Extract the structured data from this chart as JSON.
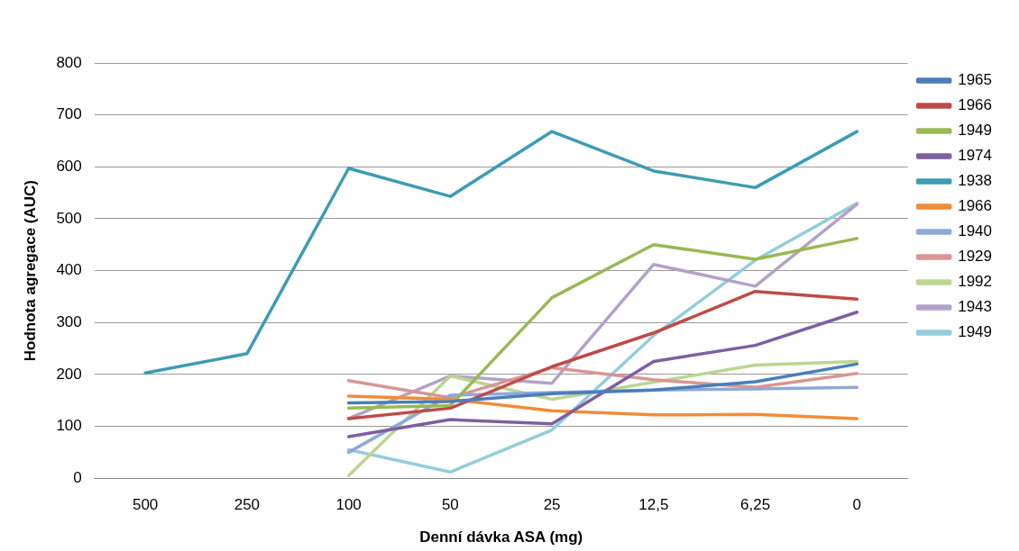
{
  "chart_data": {
    "type": "line",
    "xlabel": "Denní dávka ASA (mg)",
    "ylabel": "Hodnota agregace (AUC)",
    "categories": [
      "500",
      "250",
      "100",
      "50",
      "25",
      "12,5",
      "6,25",
      "0"
    ],
    "ylim": [
      0,
      800
    ],
    "yticks": [
      0,
      100,
      200,
      300,
      400,
      500,
      600,
      700,
      800
    ],
    "grid": "y",
    "legend": "right",
    "marker": "none",
    "series": [
      {
        "name": "1965",
        "color": "#4a7ebb",
        "values": [
          null,
          null,
          145,
          148,
          163,
          170,
          186,
          220
        ]
      },
      {
        "name": "1966",
        "color": "#be4b48",
        "values": [
          null,
          null,
          115,
          135,
          215,
          280,
          360,
          345
        ]
      },
      {
        "name": "1949",
        "color": "#98b954",
        "values": [
          null,
          null,
          135,
          140,
          348,
          450,
          422,
          462
        ]
      },
      {
        "name": "1974",
        "color": "#7d60a0",
        "values": [
          null,
          null,
          80,
          113,
          105,
          225,
          256,
          320
        ]
      },
      {
        "name": "1938",
        "color": "#3d9cb4",
        "values": [
          203,
          240,
          597,
          543,
          668,
          592,
          560,
          668
        ]
      },
      {
        "name": "1966",
        "color": "#f08c3a",
        "values": [
          null,
          null,
          158,
          152,
          130,
          122,
          123,
          115
        ]
      },
      {
        "name": "1940",
        "color": "#8ea9d8",
        "values": [
          null,
          null,
          50,
          160,
          165,
          170,
          172,
          175
        ]
      },
      {
        "name": "1929",
        "color": "#d99694",
        "values": [
          null,
          null,
          188,
          155,
          213,
          190,
          175,
          202
        ]
      },
      {
        "name": "1992",
        "color": "#bcd68f",
        "values": [
          null,
          null,
          5,
          197,
          152,
          185,
          218,
          225
        ]
      },
      {
        "name": "1943",
        "color": "#b3a2c7",
        "values": [
          null,
          null,
          115,
          197,
          183,
          412,
          370,
          528
        ]
      },
      {
        "name": "1949",
        "color": "#93cddd",
        "values": [
          null,
          null,
          55,
          12,
          93,
          275,
          420,
          530
        ]
      }
    ]
  }
}
